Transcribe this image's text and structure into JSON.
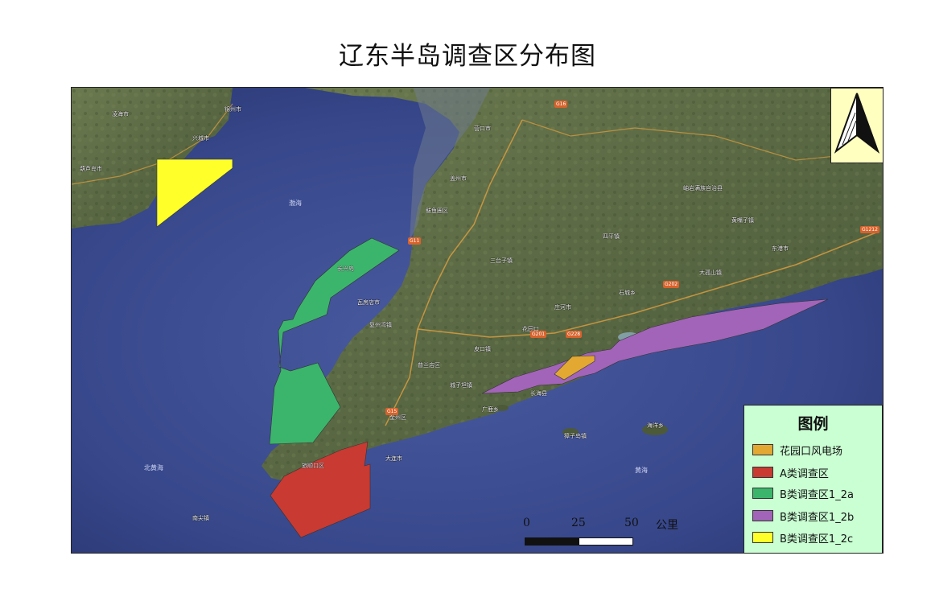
{
  "title": "辽东半岛调查区分布图",
  "legend": {
    "title": "图例",
    "items": [
      {
        "label": "花园口风电场",
        "color": "#e2a832"
      },
      {
        "label": "A类调查区",
        "color": "#c83a32"
      },
      {
        "label": "B类调查区1_2a",
        "color": "#3cb56c"
      },
      {
        "label": "B类调查区1_2b",
        "color": "#a264b8"
      },
      {
        "label": "B类调查区1_2c",
        "color": "#ffff2a"
      }
    ]
  },
  "scale_bar": {
    "ticks": [
      "0",
      "25",
      "50"
    ],
    "unit": "公里"
  },
  "places": [
    "营口市",
    "盖州市",
    "鲅鱼圈区",
    "瓦房店市",
    "普兰店区",
    "金州区",
    "大连市",
    "旅顺口区",
    "庄河市",
    "长海县",
    "广鹿乡",
    "獐子岛镇",
    "海洋乡",
    "花园口",
    "大孤山镇",
    "东港市",
    "岫岩满族自治县",
    "凌海市",
    "锦州市",
    "葫芦岛市",
    "长兴岛",
    "复州湾镇",
    "城子坦镇",
    "三台子镇",
    "四平镇",
    "兴城市",
    "皮口镇",
    "石城乡",
    "黄嘴子镇",
    "南尖镇"
  ],
  "roads": [
    "G11",
    "G15",
    "G201",
    "G228",
    "G202",
    "G16",
    "G1212"
  ],
  "sea_labels": [
    "渤海",
    "黄海",
    "北黄海"
  ],
  "north_arrow": "north-arrow-icon",
  "colors": {
    "sea": "#3b4a8f",
    "land": "#5d6b46",
    "frame": "#222222"
  }
}
